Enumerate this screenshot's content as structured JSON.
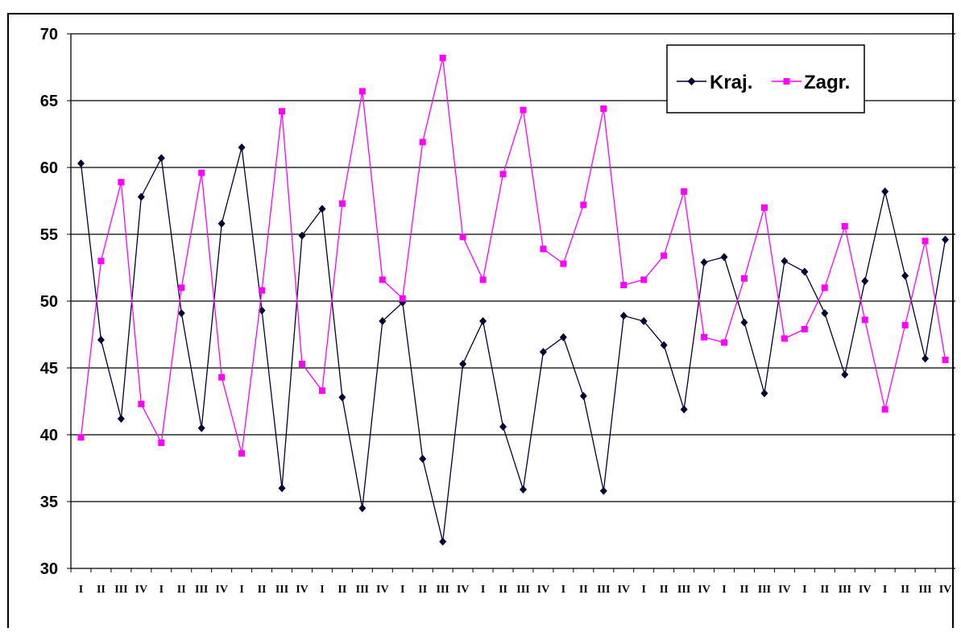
{
  "chart_data": {
    "type": "line",
    "title": "",
    "xlabel": "",
    "ylabel": "",
    "ylim": [
      30,
      70
    ],
    "yticks": [
      "30",
      "35",
      "40",
      "45",
      "50",
      "55",
      "60",
      "65",
      "70"
    ],
    "categories": [
      "I",
      "II",
      "III",
      "IV",
      "I",
      "II",
      "III",
      "IV",
      "I",
      "II",
      "III",
      "IV",
      "I",
      "II",
      "III",
      "IV",
      "I",
      "II",
      "III",
      "IV",
      "I",
      "II",
      "III",
      "IV",
      "I",
      "II",
      "III",
      "IV",
      "I",
      "II",
      "III",
      "IV",
      "I",
      "II",
      "III",
      "IV",
      "I",
      "II",
      "III",
      "IV",
      "I",
      "II",
      "III",
      "IV"
    ],
    "grid": "horizontal",
    "legend_position": "top-right",
    "series": [
      {
        "name": "Kraj.",
        "color": "#000033",
        "marker": "diamond",
        "values": [
          60.3,
          47.1,
          41.2,
          57.8,
          60.7,
          49.1,
          40.5,
          55.8,
          61.5,
          49.3,
          36.0,
          54.9,
          56.9,
          42.8,
          34.5,
          48.5,
          49.9,
          38.2,
          32.0,
          45.3,
          48.5,
          40.6,
          35.9,
          46.2,
          47.3,
          42.9,
          35.8,
          48.9,
          48.5,
          46.7,
          41.9,
          52.9,
          53.3,
          48.4,
          43.1,
          53.0,
          52.2,
          49.1,
          44.5,
          51.5,
          58.2,
          51.9,
          45.7,
          54.6
        ]
      },
      {
        "name": "Zagr.",
        "color": "#ff00ff",
        "marker": "square",
        "values": [
          39.8,
          53.0,
          58.9,
          42.3,
          39.4,
          51.0,
          59.6,
          44.3,
          38.6,
          50.8,
          64.2,
          45.3,
          43.3,
          57.3,
          65.7,
          51.6,
          50.2,
          61.9,
          68.2,
          54.8,
          51.6,
          59.5,
          64.3,
          53.9,
          52.8,
          57.2,
          64.4,
          51.2,
          51.6,
          53.4,
          58.2,
          47.3,
          46.9,
          51.7,
          57.0,
          47.2,
          47.9,
          51.0,
          55.6,
          48.6,
          41.9,
          48.2,
          54.5,
          45.6
        ]
      }
    ]
  }
}
